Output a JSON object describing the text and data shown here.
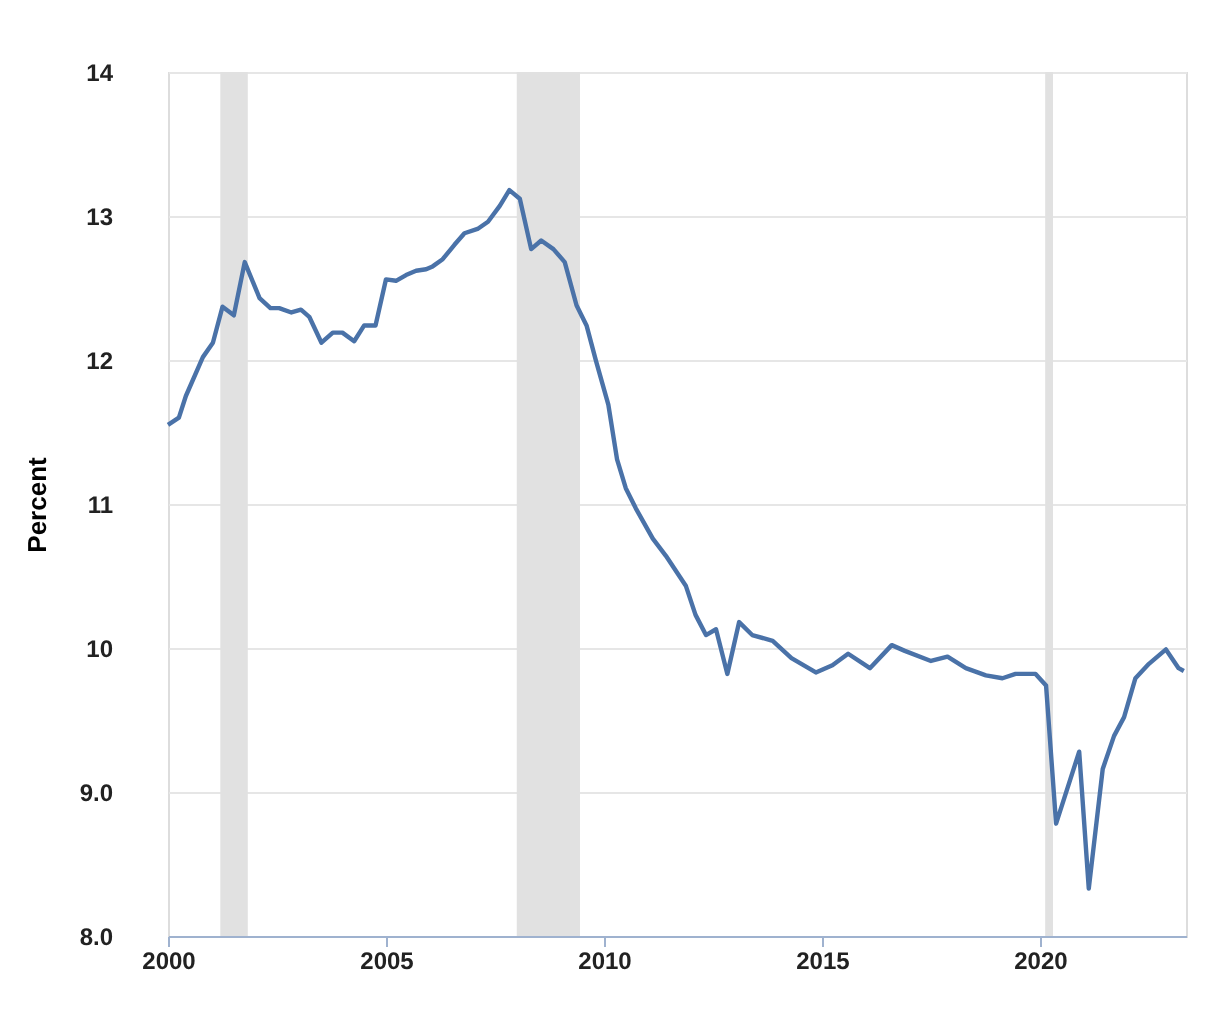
{
  "chart_data": {
    "type": "line",
    "ylabel": "Percent",
    "x": [
      2000.0,
      2000.25,
      2000.41,
      2000.8,
      2001.03,
      2001.25,
      2001.51,
      2001.76,
      2002.1,
      2002.35,
      2002.55,
      2002.83,
      2003.05,
      2003.24,
      2003.52,
      2003.78,
      2004.0,
      2004.27,
      2004.5,
      2004.76,
      2005.0,
      2005.23,
      2005.46,
      2005.69,
      2005.92,
      2006.07,
      2006.3,
      2006.57,
      2006.8,
      2007.1,
      2007.34,
      2007.61,
      2007.83,
      2008.07,
      2008.33,
      2008.56,
      2008.84,
      2009.1,
      2009.37,
      2009.6,
      2009.82,
      2010.1,
      2010.3,
      2010.5,
      2010.73,
      2011.12,
      2011.42,
      2011.88,
      2012.1,
      2012.34,
      2012.57,
      2012.83,
      2013.1,
      2013.4,
      2013.87,
      2014.3,
      2014.86,
      2015.24,
      2015.6,
      2016.1,
      2016.6,
      2016.9,
      2017.5,
      2017.88,
      2018.3,
      2018.76,
      2019.14,
      2019.44,
      2019.9,
      2020.14,
      2020.37,
      2020.9,
      2021.12,
      2021.44,
      2021.7,
      2021.93,
      2022.19,
      2022.5,
      2022.89,
      2023.18,
      2023.3
    ],
    "series": [
      {
        "color": "#4a72a8",
        "values": [
          11.55,
          11.6,
          11.75,
          12.02,
          12.12,
          12.37,
          12.31,
          12.68,
          12.43,
          12.36,
          12.36,
          12.33,
          12.35,
          12.3,
          12.12,
          12.19,
          12.19,
          12.13,
          12.24,
          12.24,
          12.56,
          12.55,
          12.59,
          12.62,
          12.63,
          12.65,
          12.7,
          12.8,
          12.88,
          12.91,
          12.96,
          13.07,
          13.18,
          13.12,
          12.77,
          12.83,
          12.77,
          12.68,
          12.38,
          12.24,
          11.99,
          11.69,
          11.31,
          11.11,
          10.97,
          10.76,
          10.64,
          10.43,
          10.23,
          10.09,
          10.13,
          9.82,
          10.18,
          10.09,
          10.05,
          9.93,
          9.83,
          9.88,
          9.96,
          9.86,
          10.02,
          9.98,
          9.91,
          9.94,
          9.86,
          9.81,
          9.79,
          9.82,
          9.82,
          9.74,
          8.78,
          9.28,
          8.33,
          9.16,
          9.39,
          9.52,
          9.79,
          9.89,
          9.99,
          9.86,
          9.84
        ]
      }
    ],
    "xlim": [
      2000,
      2023.35
    ],
    "xticks": [
      2000,
      2005,
      2010,
      2015,
      2020
    ],
    "ylim": [
      8,
      14
    ],
    "yticks": [
      {
        "value": 8,
        "label": "8.0"
      },
      {
        "value": 9,
        "label": "9.0"
      },
      10,
      11,
      12,
      13,
      14
    ],
    "bands": [
      {
        "axis": "x",
        "from": 2001.2,
        "to": 2001.83,
        "color": "#e1e1e1"
      },
      {
        "axis": "x",
        "from": 2008.0,
        "to": 2009.45,
        "color": "#e1e1e1"
      },
      {
        "axis": "x",
        "from": 2020.12,
        "to": 2020.3,
        "color": "#e1e1e1"
      }
    ],
    "grid": "y",
    "marker": "none",
    "line_style": "solid"
  }
}
